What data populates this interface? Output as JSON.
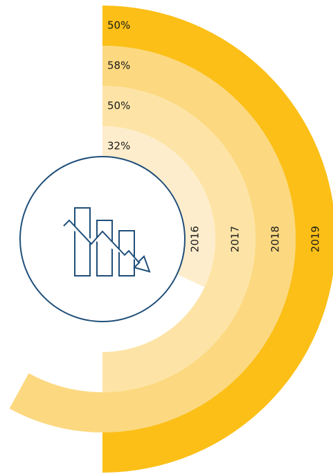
{
  "chart_data": {
    "type": "radial_bar",
    "categories": [
      "2016",
      "2017",
      "2018",
      "2019"
    ],
    "values": [
      32,
      50,
      58,
      50
    ],
    "value_labels": [
      "32%",
      "50%",
      "58%",
      "50%"
    ],
    "colors": [
      "#feedcc",
      "#fde4a6",
      "#fcd880",
      "#fbbf17"
    ],
    "ylim": [
      0,
      100
    ]
  }
}
